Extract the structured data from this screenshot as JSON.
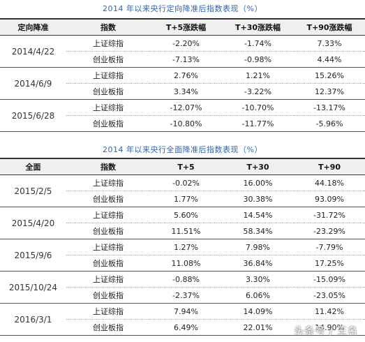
{
  "table1": {
    "title": "2014 年以来央行定向降准后指数表现（%）",
    "headers": [
      "定向降准",
      "指数",
      "T+5涨跌幅",
      "T+30涨跌幅",
      "T+90涨跌幅"
    ],
    "groups": [
      {
        "date": "2014/4/22",
        "rows": [
          {
            "index": "上证综指",
            "t5": "-2.20%",
            "t30": "-1.74%",
            "t90": "7.33%"
          },
          {
            "index": "创业板指",
            "t5": "-7.13%",
            "t30": "-0.98%",
            "t90": "4.44%"
          }
        ]
      },
      {
        "date": "2014/6/9",
        "rows": [
          {
            "index": "上证综指",
            "t5": "2.76%",
            "t30": "1.21%",
            "t90": "15.26%"
          },
          {
            "index": "创业板指",
            "t5": "3.34%",
            "t30": "-3.22%",
            "t90": "12.37%"
          }
        ]
      },
      {
        "date": "2015/6/28",
        "rows": [
          {
            "index": "上证综指",
            "t5": "-12.07%",
            "t30": "-10.70%",
            "t90": "-13.17%"
          },
          {
            "index": "创业板指",
            "t5": "-10.80%",
            "t30": "-11.77%",
            "t90": "-5.96%"
          }
        ]
      }
    ]
  },
  "table2": {
    "title": "2014 年以来央行全面降准后指数表现（%）",
    "headers": [
      "全面",
      "指数",
      "T+5",
      "T+30",
      "T+90"
    ],
    "groups": [
      {
        "date": "2015/2/5",
        "rows": [
          {
            "index": "上证综指",
            "t5": "-0.02%",
            "t30": "16.00%",
            "t90": "44.18%"
          },
          {
            "index": "创业板指",
            "t5": "1.77%",
            "t30": "30.38%",
            "t90": "93.09%"
          }
        ]
      },
      {
        "date": "2015/4/20",
        "rows": [
          {
            "index": "上证综指",
            "t5": "5.60%",
            "t30": "14.54%",
            "t90": "-31.72%"
          },
          {
            "index": "创业板指",
            "t5": "11.51%",
            "t30": "58.34%",
            "t90": "-23.29%"
          }
        ]
      },
      {
        "date": "2015/9/6",
        "rows": [
          {
            "index": "上证综指",
            "t5": "1.27%",
            "t30": "7.98%",
            "t90": "-7.79%"
          },
          {
            "index": "创业板指",
            "t5": "11.08%",
            "t30": "36.84%",
            "t90": "17.25%"
          }
        ]
      },
      {
        "date": "2015/10/24",
        "rows": [
          {
            "index": "上证综指",
            "t5": "-0.88%",
            "t30": "3.30%",
            "t90": "-15.09%"
          },
          {
            "index": "创业板指",
            "t5": "-2.37%",
            "t30": "6.06%",
            "t90": "-23.05%"
          }
        ]
      },
      {
        "date": "2016/3/1",
        "rows": [
          {
            "index": "上证综指",
            "t5": "7.94%",
            "t30": "14.09%",
            "t90": "11.42%"
          },
          {
            "index": "创业板指",
            "t5": "6.49%",
            "t30": "22.01%",
            "t90": "14.90%"
          }
        ]
      }
    ]
  },
  "watermark": "头条号 / 王名"
}
